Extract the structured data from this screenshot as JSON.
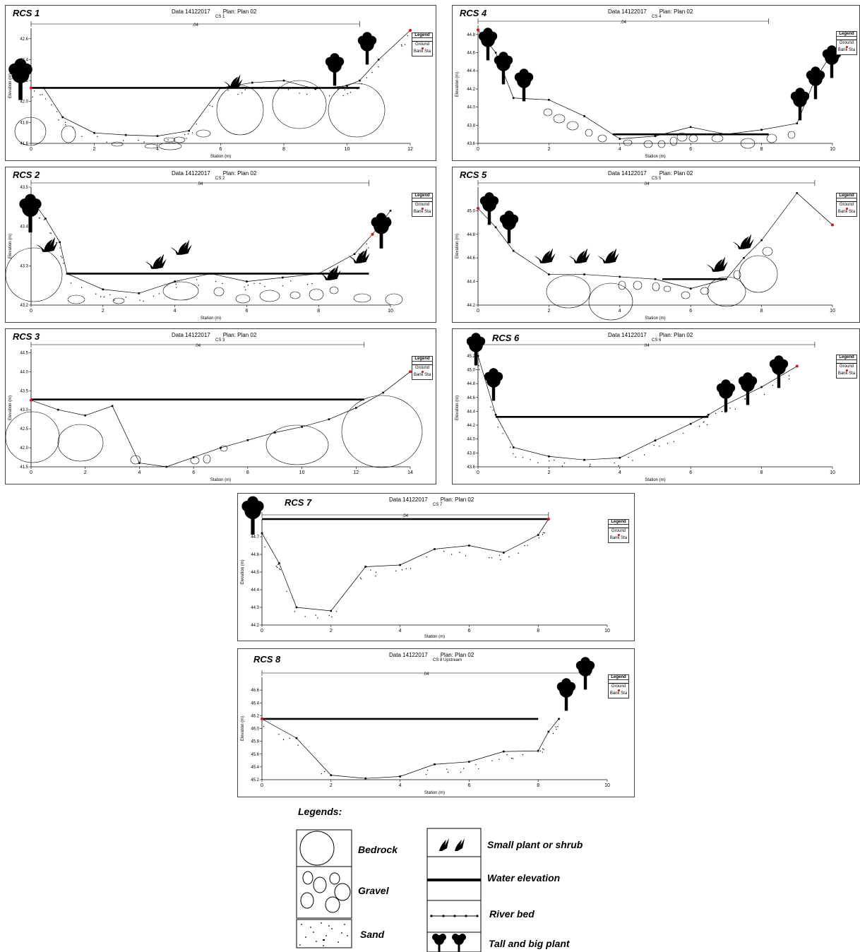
{
  "header": {
    "data": "Data 14122017",
    "plan": "Plan: Plan 02",
    "ratio": ".04"
  },
  "legend_box": {
    "title": "Legend",
    "ground": "Ground",
    "bank": "Bank Sta"
  },
  "panels": [
    {
      "id": "rcs1",
      "title": "RCS 1",
      "cs": "CS 1",
      "xlim": [
        0,
        12
      ],
      "ylim": [
        41.6,
        42.7
      ],
      "xticks": [
        0,
        2,
        4,
        6,
        8,
        10,
        12
      ],
      "yticks": [
        41.6,
        41.8,
        42.0,
        42.2,
        42.4,
        42.6
      ],
      "ground": [
        [
          0,
          42.13
        ],
        [
          0.4,
          42.13
        ],
        [
          1,
          41.85
        ],
        [
          2,
          41.7
        ],
        [
          3,
          41.68
        ],
        [
          4,
          41.67
        ],
        [
          5,
          41.72
        ],
        [
          6,
          42.13
        ],
        [
          7,
          42.18
        ],
        [
          8,
          42.2
        ],
        [
          9,
          42.12
        ],
        [
          10,
          42.15
        ],
        [
          10.4,
          42.2
        ],
        [
          11,
          42.4
        ],
        [
          12,
          42.68
        ]
      ],
      "bank": [
        [
          0,
          42.13
        ],
        [
          12,
          42.68
        ]
      ],
      "water": 42.13,
      "water_range": [
        0,
        10.4
      ]
    },
    {
      "id": "rcs2",
      "title": "RCS 2",
      "cs": "CS 2",
      "xlim": [
        0,
        10
      ],
      "ylim": [
        43.2,
        43.5
      ],
      "xticks": [
        0,
        2,
        4,
        6,
        8,
        10
      ],
      "yticks": [
        43.2,
        43.3,
        43.4,
        43.5
      ],
      "ground": [
        [
          0,
          43.47
        ],
        [
          0.4,
          43.42
        ],
        [
          0.8,
          43.36
        ],
        [
          1,
          43.28
        ],
        [
          2,
          43.24
        ],
        [
          3,
          43.23
        ],
        [
          4,
          43.26
        ],
        [
          5,
          43.28
        ],
        [
          6,
          43.26
        ],
        [
          7,
          43.27
        ],
        [
          8,
          43.28
        ],
        [
          9,
          43.33
        ],
        [
          9.5,
          43.38
        ],
        [
          10,
          43.44
        ]
      ],
      "bank": [
        [
          0,
          43.47
        ],
        [
          9.5,
          43.38
        ]
      ],
      "water": 43.28,
      "water_range": [
        1,
        9.4
      ]
    },
    {
      "id": "rcs3",
      "title": "RCS 3",
      "cs": "CS 3",
      "xlim": [
        0,
        14
      ],
      "ylim": [
        41.5,
        44.6
      ],
      "xticks": [
        0,
        2,
        4,
        6,
        8,
        10,
        12,
        14
      ],
      "yticks": [
        41.5,
        42.0,
        42.5,
        43.0,
        43.5,
        44.0,
        44.5
      ],
      "ground": [
        [
          0,
          43.25
        ],
        [
          1,
          43.0
        ],
        [
          2,
          42.85
        ],
        [
          3,
          43.1
        ],
        [
          4,
          41.6
        ],
        [
          5,
          41.5
        ],
        [
          6,
          41.75
        ],
        [
          7,
          42.0
        ],
        [
          8,
          42.2
        ],
        [
          9,
          42.4
        ],
        [
          10,
          42.55
        ],
        [
          11,
          42.75
        ],
        [
          12,
          43.05
        ],
        [
          13,
          43.45
        ],
        [
          14,
          44.0
        ]
      ],
      "bank": [
        [
          0,
          43.25
        ],
        [
          14,
          44.0
        ]
      ],
      "water": 43.27,
      "water_range": [
        0,
        12.3
      ]
    },
    {
      "id": "rcs4",
      "title": "RCS 4",
      "cs": "CS 4",
      "xlim": [
        0,
        10
      ],
      "ylim": [
        43.6,
        44.9
      ],
      "xticks": [
        0,
        2,
        4,
        6,
        8,
        10
      ],
      "yticks": [
        43.6,
        43.8,
        44.0,
        44.2,
        44.4,
        44.6,
        44.8
      ],
      "ground": [
        [
          0,
          44.85
        ],
        [
          0.5,
          44.6
        ],
        [
          1,
          44.1
        ],
        [
          2,
          44.08
        ],
        [
          3,
          43.9
        ],
        [
          4,
          43.65
        ],
        [
          5,
          43.68
        ],
        [
          6,
          43.78
        ],
        [
          7,
          43.7
        ],
        [
          8,
          43.75
        ],
        [
          9,
          43.82
        ],
        [
          9.5,
          44.3
        ],
        [
          10,
          44.6
        ]
      ],
      "bank": [
        [
          0,
          44.85
        ]
      ],
      "water": 43.7,
      "water_range": [
        3.8,
        8.2
      ]
    },
    {
      "id": "rcs5",
      "title": "RCS 5",
      "cs": "CS 5",
      "xlim": [
        0,
        10
      ],
      "ylim": [
        44.2,
        45.2
      ],
      "xticks": [
        0,
        2,
        4,
        6,
        8,
        10
      ],
      "yticks": [
        44.2,
        44.4,
        44.6,
        44.8,
        45.0
      ],
      "ground": [
        [
          0,
          45.02
        ],
        [
          0.5,
          44.86
        ],
        [
          1,
          44.66
        ],
        [
          2,
          44.46
        ],
        [
          3,
          44.46
        ],
        [
          4,
          44.44
        ],
        [
          5,
          44.42
        ],
        [
          6,
          44.34
        ],
        [
          7,
          44.42
        ],
        [
          7.5,
          44.6
        ],
        [
          8,
          44.75
        ],
        [
          9,
          45.15
        ],
        [
          10,
          44.88
        ]
      ],
      "bank": [
        [
          0,
          45.02
        ],
        [
          10,
          44.88
        ]
      ],
      "water": 44.42,
      "water_range": [
        5.2,
        7.0
      ]
    },
    {
      "id": "rcs6",
      "title": "RCS 6",
      "cs": "CS 6",
      "xlim": [
        0,
        10
      ],
      "ylim": [
        43.6,
        45.3
      ],
      "xticks": [
        0,
        2,
        4,
        6,
        8,
        10
      ],
      "yticks": [
        43.6,
        43.8,
        44.0,
        44.2,
        44.4,
        44.6,
        44.8,
        45.0,
        45.2
      ],
      "ground": [
        [
          0,
          45.2
        ],
        [
          0.5,
          44.35
        ],
        [
          1,
          43.88
        ],
        [
          2,
          43.75
        ],
        [
          3,
          43.7
        ],
        [
          4,
          43.73
        ],
        [
          5,
          43.98
        ],
        [
          6,
          44.22
        ],
        [
          6.5,
          44.35
        ],
        [
          7,
          44.5
        ],
        [
          8,
          44.75
        ],
        [
          9,
          45.05
        ]
      ],
      "bank": [
        [
          9,
          45.05
        ]
      ],
      "water": 44.32,
      "water_range": [
        0.5,
        6.5
      ]
    },
    {
      "id": "rcs7",
      "title": "RCS 7",
      "cs": "CS 7",
      "xlim": [
        0,
        10
      ],
      "ylim": [
        44.2,
        44.8
      ],
      "xticks": [
        0,
        2,
        4,
        6,
        8,
        10
      ],
      "yticks": [
        44.2,
        44.3,
        44.4,
        44.5,
        44.6,
        44.7
      ],
      "ground": [
        [
          0,
          44.72
        ],
        [
          0.5,
          44.55
        ],
        [
          1,
          44.3
        ],
        [
          2,
          44.28
        ],
        [
          3,
          44.53
        ],
        [
          4,
          44.54
        ],
        [
          5,
          44.63
        ],
        [
          6,
          44.65
        ],
        [
          7,
          44.61
        ],
        [
          8,
          44.71
        ],
        [
          8.3,
          44.8
        ]
      ],
      "bank": [
        [
          8.3,
          44.8
        ]
      ],
      "water": 44.8,
      "water_range": [
        0,
        8.3
      ]
    },
    {
      "id": "rcs8",
      "title": "RCS 8",
      "cs": "CS 8 Upstream",
      "xlim": [
        0,
        10
      ],
      "ylim": [
        45.2,
        46.8
      ],
      "xticks": [
        0,
        2,
        4,
        6,
        8,
        10
      ],
      "yticks": [
        45.2,
        45.4,
        45.6,
        45.8,
        46.0,
        46.2,
        46.4,
        46.6
      ],
      "ground": [
        [
          0,
          46.15
        ],
        [
          1,
          45.85
        ],
        [
          2,
          45.27
        ],
        [
          3,
          45.22
        ],
        [
          4,
          45.25
        ],
        [
          5,
          45.44
        ],
        [
          6,
          45.48
        ],
        [
          7,
          45.64
        ],
        [
          8,
          45.65
        ],
        [
          8.3,
          45.95
        ],
        [
          8.6,
          46.15
        ]
      ],
      "bank": [
        [
          0,
          46.15
        ]
      ],
      "water": 46.15,
      "water_range": [
        0,
        8.0
      ]
    }
  ],
  "axis_labels": {
    "x": "Station (m)",
    "y": "Elevation (m)"
  },
  "legend": {
    "title": "Legends:",
    "bedrock": "Bedrock",
    "gravel": "Gravel",
    "sand": "Sand",
    "shrub": "Small plant or shrub",
    "water": "Water elevation",
    "riverbed": "River bed",
    "tree": "Tall and big plant"
  }
}
